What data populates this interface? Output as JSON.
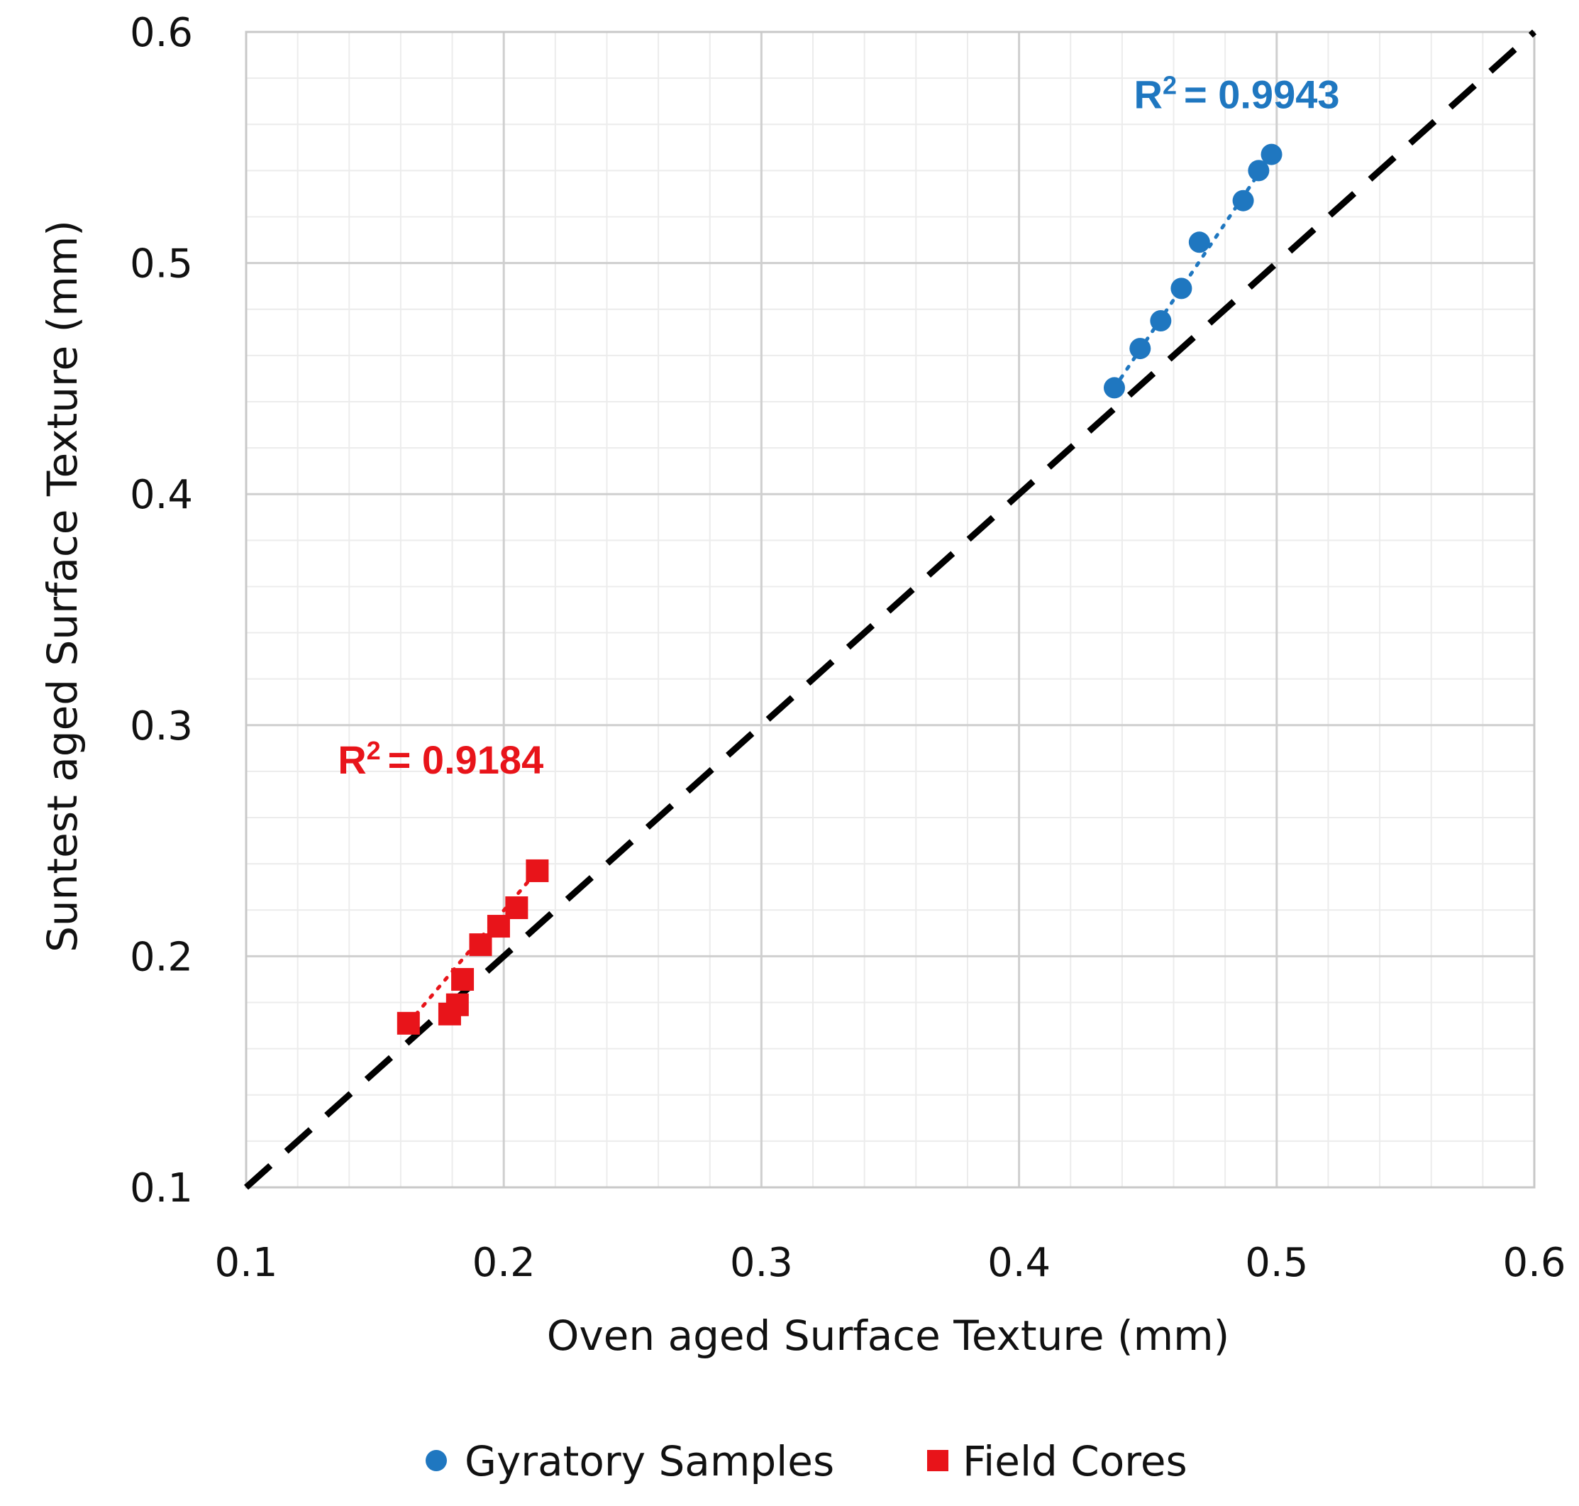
{
  "chart_data": {
    "type": "scatter",
    "xlabel": "Oven aged Surface Texture (mm)",
    "ylabel": "Suntest aged Surface Texture (mm)",
    "xlim": [
      0.1,
      0.6
    ],
    "ylim": [
      0.1,
      0.6
    ],
    "xticks": [
      "0.1",
      "0.2",
      "0.3",
      "0.4",
      "0.5",
      "0.6"
    ],
    "yticks": [
      "0.1",
      "0.2",
      "0.3",
      "0.4",
      "0.5",
      "0.6"
    ],
    "grid": true,
    "minor_grid": true,
    "reference_line": {
      "style": "dashed",
      "color": "#000000",
      "from": [
        0.1,
        0.1
      ],
      "to": [
        0.6,
        0.6
      ]
    },
    "series": [
      {
        "name": "Gyratory Samples",
        "color": "#1F77C0",
        "marker": "circle",
        "x": [
          0.437,
          0.447,
          0.455,
          0.463,
          0.47,
          0.487,
          0.493,
          0.498
        ],
        "y": [
          0.446,
          0.463,
          0.475,
          0.489,
          0.509,
          0.527,
          0.54,
          0.547
        ],
        "trendline": {
          "style": "dotted",
          "x": [
            0.437,
            0.498
          ],
          "y": [
            0.446,
            0.547
          ]
        },
        "annotation": {
          "text": "= 0.9943",
          "x": 0.4845,
          "y": 0.567
        }
      },
      {
        "name": "Field Cores",
        "color": "#E8141A",
        "marker": "square",
        "x": [
          0.163,
          0.179,
          0.182,
          0.184,
          0.191,
          0.198,
          0.205,
          0.213
        ],
        "y": [
          0.171,
          0.175,
          0.179,
          0.19,
          0.205,
          0.213,
          0.221,
          0.237
        ],
        "trendline": {
          "style": "dotted",
          "x": [
            0.163,
            0.213
          ],
          "y": [
            0.171,
            0.237
          ]
        },
        "annotation": {
          "text": "= 0.9184",
          "x": 0.1755,
          "y": 0.279
        }
      }
    ],
    "legend": {
      "position": "bottom",
      "entries": [
        "Gyratory Samples",
        "Field Cores"
      ]
    }
  }
}
